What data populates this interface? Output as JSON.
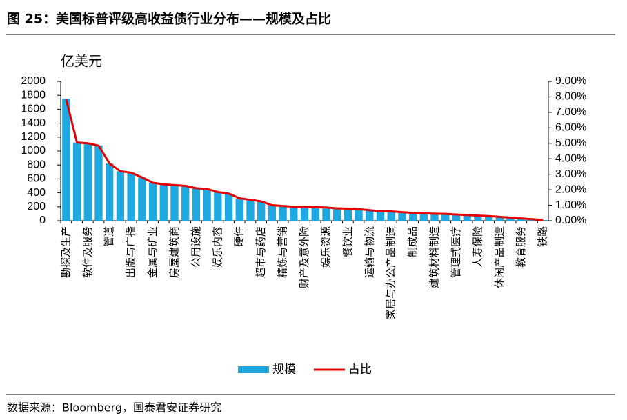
{
  "chart_data": {
    "type": "bar_line",
    "title": "图 25：美国标普评级高收益债行业分布——规模及占比",
    "y_axis_label": "亿美元",
    "source": "数据来源：Bloomberg，国泰君安证券研究",
    "categories": [
      "勘探及生产",
      null,
      "软件及服务",
      null,
      "管道",
      null,
      "出版与广播",
      null,
      "金属与矿业",
      null,
      "房屋建筑商",
      null,
      "公用设施",
      null,
      "娱乐内容",
      null,
      "硬件",
      null,
      "超市与药店",
      null,
      "精炼与营销",
      null,
      "财产及意外险",
      null,
      "娱乐资源",
      null,
      "餐饮业",
      null,
      "运输与物流",
      null,
      "家居与办公产品制造",
      null,
      "制成品",
      null,
      "建筑材料制造",
      null,
      "管理式医疗",
      null,
      "人寿保险",
      null,
      "休闲产品制造",
      null,
      "教育服务",
      null,
      "铁路"
    ],
    "series": [
      {
        "name": "规模",
        "type": "bar",
        "color": "#1fa7e0",
        "axis": "y",
        "values": [
          1750,
          1120,
          1110,
          1080,
          820,
          710,
          690,
          620,
          545,
          520,
          510,
          500,
          465,
          455,
          410,
          390,
          320,
          300,
          280,
          220,
          210,
          200,
          200,
          195,
          190,
          180,
          175,
          165,
          150,
          140,
          135,
          120,
          110,
          105,
          100,
          98,
          90,
          82,
          75,
          67,
          55,
          45,
          35,
          22,
          10
        ]
      },
      {
        "name": "占比",
        "type": "line",
        "color": "#e60000",
        "axis": "y2",
        "values": [
          7.85,
          5.05,
          5.0,
          4.85,
          3.7,
          3.2,
          3.1,
          2.8,
          2.45,
          2.35,
          2.3,
          2.25,
          2.1,
          2.05,
          1.85,
          1.75,
          1.45,
          1.35,
          1.25,
          1.0,
          0.95,
          0.9,
          0.9,
          0.88,
          0.85,
          0.8,
          0.78,
          0.75,
          0.68,
          0.62,
          0.6,
          0.55,
          0.5,
          0.47,
          0.45,
          0.44,
          0.4,
          0.37,
          0.33,
          0.3,
          0.25,
          0.2,
          0.15,
          0.1,
          0.05
        ]
      }
    ],
    "ylim": [
      0,
      2000
    ],
    "yticks": [
      0,
      200,
      400,
      600,
      800,
      1000,
      1200,
      1400,
      1600,
      1800,
      2000
    ],
    "y2lim": [
      0,
      9
    ],
    "y2ticks": [
      {
        "value": 0,
        "label": "0.00%"
      },
      {
        "value": 1,
        "label": "1.00%"
      },
      {
        "value": 2,
        "label": "2.00%"
      },
      {
        "value": 3,
        "label": "3.00%"
      },
      {
        "value": 4,
        "label": "4.00%"
      },
      {
        "value": 5,
        "label": "5.00%"
      },
      {
        "value": 6,
        "label": "6.00%"
      },
      {
        "value": 7,
        "label": "7.00%"
      },
      {
        "value": 8,
        "label": "8.00%"
      },
      {
        "value": 9,
        "label": "9.00%"
      }
    ],
    "legend": "bottom"
  }
}
